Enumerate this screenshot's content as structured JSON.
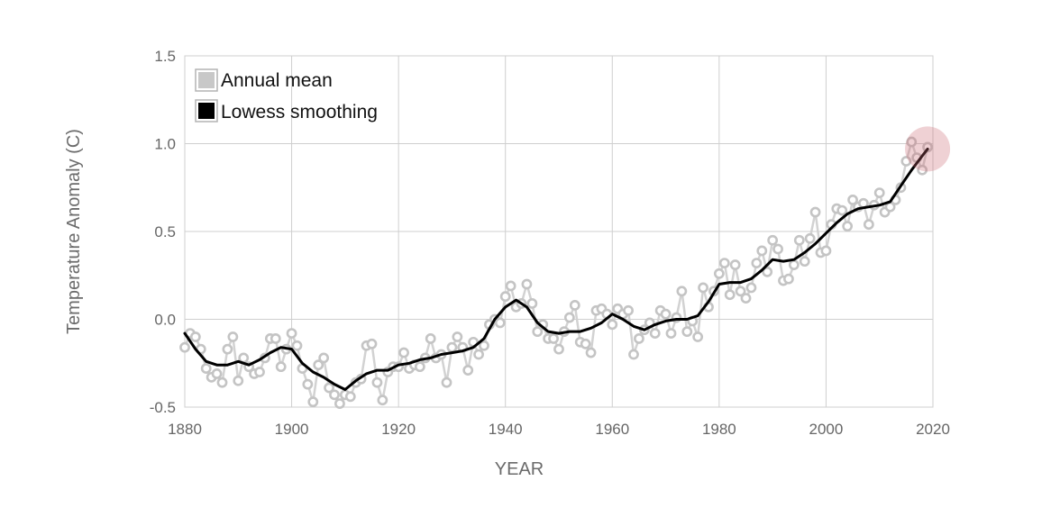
{
  "chart_data": {
    "type": "line",
    "xlabel": "YEAR",
    "ylabel": "Temperature Anomaly (C)",
    "xlim": [
      1880,
      2020
    ],
    "ylim": [
      -0.5,
      1.5
    ],
    "xticks": [
      1880,
      1900,
      1920,
      1940,
      1960,
      1980,
      2000,
      2020
    ],
    "xtick_labels": [
      "1880",
      "1900",
      "1920",
      "1940",
      "1960",
      "1980",
      "2000",
      "2020"
    ],
    "yticks": [
      -0.5,
      0.0,
      0.5,
      1.0,
      1.5
    ],
    "ytick_labels": [
      "-0.5",
      "0.0",
      "0.5",
      "1.0",
      "1.5"
    ],
    "grid": true,
    "legend_position": "top-left",
    "highlight_year": 2019,
    "series": [
      {
        "name": "Annual mean",
        "color": "#c8c8c8",
        "marker": "open-circle",
        "x": [
          1880,
          1881,
          1882,
          1883,
          1884,
          1885,
          1886,
          1887,
          1888,
          1889,
          1890,
          1891,
          1892,
          1893,
          1894,
          1895,
          1896,
          1897,
          1898,
          1899,
          1900,
          1901,
          1902,
          1903,
          1904,
          1905,
          1906,
          1907,
          1908,
          1909,
          1910,
          1911,
          1912,
          1913,
          1914,
          1915,
          1916,
          1917,
          1918,
          1919,
          1920,
          1921,
          1922,
          1923,
          1924,
          1925,
          1926,
          1927,
          1928,
          1929,
          1930,
          1931,
          1932,
          1933,
          1934,
          1935,
          1936,
          1937,
          1938,
          1939,
          1940,
          1941,
          1942,
          1943,
          1944,
          1945,
          1946,
          1947,
          1948,
          1949,
          1950,
          1951,
          1952,
          1953,
          1954,
          1955,
          1956,
          1957,
          1958,
          1959,
          1960,
          1961,
          1962,
          1963,
          1964,
          1965,
          1966,
          1967,
          1968,
          1969,
          1970,
          1971,
          1972,
          1973,
          1974,
          1975,
          1976,
          1977,
          1978,
          1979,
          1980,
          1981,
          1982,
          1983,
          1984,
          1985,
          1986,
          1987,
          1988,
          1989,
          1990,
          1991,
          1992,
          1993,
          1994,
          1995,
          1996,
          1997,
          1998,
          1999,
          2000,
          2001,
          2002,
          2003,
          2004,
          2005,
          2006,
          2007,
          2008,
          2009,
          2010,
          2011,
          2012,
          2013,
          2014,
          2015,
          2016,
          2017,
          2018,
          2019
        ],
        "values": [
          -0.16,
          -0.08,
          -0.1,
          -0.17,
          -0.28,
          -0.33,
          -0.31,
          -0.36,
          -0.17,
          -0.1,
          -0.35,
          -0.22,
          -0.27,
          -0.31,
          -0.3,
          -0.22,
          -0.11,
          -0.11,
          -0.27,
          -0.17,
          -0.08,
          -0.15,
          -0.28,
          -0.37,
          -0.47,
          -0.26,
          -0.22,
          -0.39,
          -0.43,
          -0.48,
          -0.43,
          -0.44,
          -0.36,
          -0.34,
          -0.15,
          -0.14,
          -0.36,
          -0.46,
          -0.3,
          -0.27,
          -0.27,
          -0.19,
          -0.28,
          -0.26,
          -0.27,
          -0.22,
          -0.11,
          -0.22,
          -0.2,
          -0.36,
          -0.16,
          -0.1,
          -0.16,
          -0.29,
          -0.13,
          -0.2,
          -0.15,
          -0.03,
          0.0,
          -0.02,
          0.13,
          0.19,
          0.07,
          0.09,
          0.2,
          0.09,
          -0.07,
          -0.03,
          -0.11,
          -0.11,
          -0.17,
          -0.07,
          0.01,
          0.08,
          -0.13,
          -0.14,
          -0.19,
          0.05,
          0.06,
          0.03,
          -0.03,
          0.06,
          0.03,
          0.05,
          -0.2,
          -0.11,
          -0.06,
          -0.02,
          -0.08,
          0.05,
          0.03,
          -0.08,
          0.01,
          0.16,
          -0.07,
          -0.01,
          -0.1,
          0.18,
          0.07,
          0.16,
          0.26,
          0.32,
          0.14,
          0.31,
          0.16,
          0.12,
          0.18,
          0.32,
          0.39,
          0.27,
          0.45,
          0.4,
          0.22,
          0.23,
          0.31,
          0.45,
          0.33,
          0.46,
          0.61,
          0.38,
          0.39,
          0.54,
          0.63,
          0.62,
          0.53,
          0.68,
          0.64,
          0.66,
          0.54,
          0.65,
          0.72,
          0.61,
          0.64,
          0.68,
          0.75,
          0.9,
          1.01,
          0.92,
          0.85,
          0.98
        ]
      },
      {
        "name": "Lowess smoothing",
        "color": "#000000",
        "x": [
          1880,
          1882,
          1884,
          1886,
          1888,
          1890,
          1892,
          1894,
          1896,
          1898,
          1900,
          1902,
          1904,
          1906,
          1908,
          1910,
          1912,
          1914,
          1916,
          1918,
          1920,
          1922,
          1924,
          1926,
          1928,
          1930,
          1932,
          1934,
          1936,
          1938,
          1940,
          1942,
          1944,
          1946,
          1948,
          1950,
          1952,
          1954,
          1956,
          1958,
          1960,
          1962,
          1964,
          1966,
          1968,
          1970,
          1972,
          1974,
          1976,
          1978,
          1980,
          1982,
          1984,
          1986,
          1988,
          1990,
          1992,
          1994,
          1996,
          1998,
          2000,
          2002,
          2004,
          2006,
          2008,
          2010,
          2012,
          2014,
          2016,
          2018,
          2019
        ],
        "values": [
          -0.08,
          -0.17,
          -0.24,
          -0.26,
          -0.26,
          -0.24,
          -0.26,
          -0.23,
          -0.19,
          -0.16,
          -0.17,
          -0.25,
          -0.3,
          -0.33,
          -0.37,
          -0.4,
          -0.35,
          -0.31,
          -0.29,
          -0.29,
          -0.26,
          -0.25,
          -0.23,
          -0.22,
          -0.2,
          -0.19,
          -0.18,
          -0.16,
          -0.11,
          0.0,
          0.07,
          0.11,
          0.07,
          -0.02,
          -0.07,
          -0.08,
          -0.07,
          -0.07,
          -0.05,
          -0.02,
          0.03,
          0.0,
          -0.04,
          -0.06,
          -0.03,
          -0.01,
          0.0,
          0.0,
          0.02,
          0.1,
          0.2,
          0.21,
          0.21,
          0.23,
          0.28,
          0.34,
          0.33,
          0.34,
          0.38,
          0.43,
          0.49,
          0.55,
          0.6,
          0.63,
          0.64,
          0.65,
          0.67,
          0.76,
          0.85,
          0.93,
          0.97
        ]
      }
    ]
  }
}
